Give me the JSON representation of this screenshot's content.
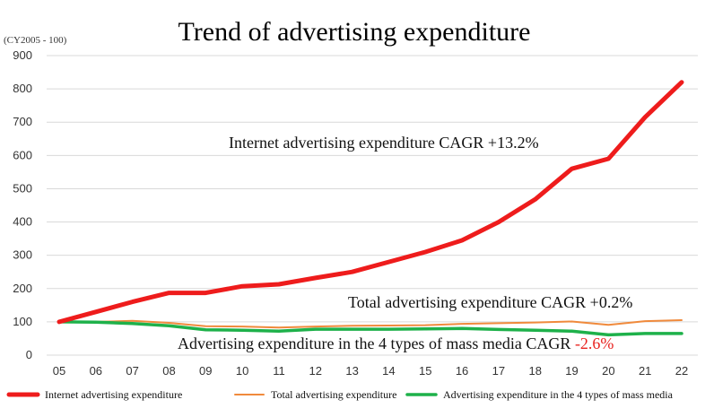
{
  "chart_data": {
    "type": "line",
    "title": "Trend of advertising expenditure",
    "unit_label": "(CY2005 - 100)",
    "categories": [
      "05",
      "06",
      "07",
      "08",
      "09",
      "10",
      "11",
      "12",
      "13",
      "14",
      "15",
      "16",
      "17",
      "18",
      "19",
      "20",
      "21",
      "22"
    ],
    "ylim": [
      0,
      900
    ],
    "yticks": [
      "0",
      "100",
      "200",
      "300",
      "400",
      "500",
      "600",
      "700",
      "800",
      "900"
    ],
    "grid": "horizontal",
    "legend_position": "bottom",
    "series": [
      {
        "name": "Internet advertising expenditure",
        "color": "#ee1c1c",
        "values": [
          100,
          130,
          160,
          187,
          187,
          207,
          213,
          232,
          250,
          280,
          310,
          345,
          400,
          468,
          560,
          590,
          715,
          820
        ]
      },
      {
        "name": "Total advertising expenditure",
        "color": "#f08a3c",
        "values": [
          100,
          100,
          103,
          97,
          87,
          86,
          83,
          86,
          88,
          89,
          90,
          94,
          96,
          98,
          101,
          91,
          102,
          105
        ]
      },
      {
        "name": "Advertising expenditure in the 4 types of mass media",
        "color": "#1eb14a",
        "values": [
          100,
          99,
          95,
          88,
          76,
          75,
          72,
          78,
          78,
          78,
          79,
          80,
          77,
          75,
          72,
          61,
          65,
          65
        ]
      }
    ],
    "annotations": [
      {
        "text": "Internet advertising expenditure CAGR +13.2%",
        "highlight": ""
      },
      {
        "text": "Total advertising expenditure CAGR +0.2%",
        "highlight": ""
      },
      {
        "text": "Advertising expenditure in the 4 types of mass media CAGR ",
        "highlight": "-2.6%"
      }
    ]
  }
}
